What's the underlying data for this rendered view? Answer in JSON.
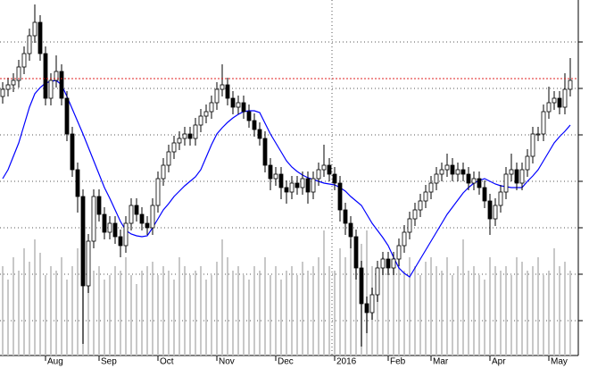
{
  "chart_data": {
    "type": "candlestick",
    "categories": [
      null,
      null,
      null,
      null,
      null,
      null,
      null,
      null,
      null,
      "Aug",
      null,
      null,
      null,
      null,
      null,
      null,
      null,
      null,
      null,
      "Sep",
      null,
      null,
      null,
      null,
      null,
      null,
      null,
      null,
      null,
      null,
      "Oct",
      null,
      null,
      null,
      null,
      null,
      null,
      null,
      null,
      null,
      null,
      "Nov",
      null,
      null,
      null,
      null,
      null,
      null,
      null,
      null,
      null,
      null,
      "Dec",
      null,
      null,
      null,
      null,
      null,
      null,
      null,
      null,
      null,
      null,
      "2016",
      null,
      null,
      null,
      null,
      null,
      null,
      null,
      null,
      null,
      "Feb",
      null,
      null,
      null,
      null,
      null,
      null,
      null,
      "Mar",
      null,
      null,
      null,
      null,
      null,
      null,
      null,
      null,
      null,
      null,
      "Apr",
      null,
      null,
      null,
      null,
      null,
      null,
      null,
      null,
      null,
      null,
      "May",
      null,
      null,
      null
    ],
    "open": [
      290,
      298,
      303,
      308,
      323,
      338,
      358,
      373,
      338,
      288,
      308,
      318,
      288,
      248,
      208,
      178,
      78,
      128,
      178,
      158,
      138,
      148,
      133,
      123,
      148,
      168,
      158,
      148,
      143,
      168,
      198,
      213,
      228,
      238,
      243,
      248,
      243,
      258,
      268,
      273,
      283,
      298,
      303,
      288,
      278,
      283,
      273,
      263,
      253,
      243,
      213,
      198,
      203,
      188,
      183,
      193,
      188,
      198,
      183,
      198,
      208,
      213,
      203,
      193,
      163,
      148,
      133,
      98,
      58,
      48,
      68,
      98,
      108,
      98,
      108,
      123,
      138,
      153,
      163,
      173,
      183,
      193,
      203,
      208,
      213,
      203,
      208,
      203,
      193,
      198,
      188,
      173,
      153,
      168,
      183,
      203,
      208,
      193,
      208,
      223,
      248,
      248,
      273,
      283,
      288,
      278,
      298
    ],
    "high": [
      306,
      311,
      316,
      331,
      346,
      366,
      393,
      381,
      346,
      316,
      336,
      326,
      296,
      256,
      216,
      186,
      136,
      186,
      186,
      166,
      156,
      156,
      141,
      156,
      176,
      176,
      166,
      156,
      176,
      206,
      221,
      236,
      246,
      251,
      256,
      256,
      266,
      276,
      281,
      291,
      306,
      326,
      311,
      296,
      291,
      291,
      281,
      271,
      261,
      251,
      221,
      211,
      211,
      196,
      201,
      201,
      206,
      206,
      206,
      216,
      236,
      221,
      211,
      201,
      171,
      156,
      141,
      106,
      66,
      76,
      106,
      116,
      116,
      116,
      131,
      146,
      161,
      171,
      181,
      191,
      201,
      211,
      216,
      226,
      221,
      216,
      216,
      211,
      206,
      206,
      196,
      181,
      176,
      191,
      211,
      226,
      216,
      216,
      231,
      256,
      256,
      281,
      301,
      296,
      296,
      316,
      333
    ],
    "low": [
      282,
      290,
      295,
      300,
      315,
      330,
      350,
      330,
      280,
      280,
      300,
      280,
      240,
      200,
      160,
      13,
      70,
      120,
      150,
      130,
      130,
      125,
      110,
      115,
      140,
      150,
      140,
      135,
      135,
      160,
      190,
      205,
      220,
      230,
      235,
      235,
      235,
      250,
      260,
      265,
      275,
      290,
      280,
      270,
      270,
      265,
      255,
      245,
      235,
      205,
      185,
      190,
      175,
      170,
      175,
      180,
      180,
      170,
      175,
      190,
      200,
      195,
      185,
      150,
      135,
      120,
      85,
      10,
      25,
      40,
      60,
      90,
      90,
      90,
      100,
      115,
      130,
      145,
      155,
      165,
      175,
      185,
      195,
      200,
      195,
      195,
      195,
      185,
      185,
      180,
      165,
      135,
      145,
      160,
      175,
      195,
      185,
      185,
      200,
      215,
      240,
      240,
      265,
      275,
      270,
      270,
      290
    ],
    "close": [
      298,
      303,
      308,
      323,
      338,
      358,
      373,
      338,
      288,
      308,
      318,
      288,
      248,
      208,
      178,
      78,
      128,
      178,
      158,
      138,
      148,
      133,
      123,
      148,
      168,
      158,
      148,
      143,
      168,
      198,
      213,
      228,
      238,
      243,
      248,
      243,
      258,
      268,
      273,
      283,
      298,
      303,
      288,
      278,
      283,
      273,
      263,
      253,
      243,
      213,
      198,
      203,
      188,
      183,
      193,
      188,
      198,
      183,
      198,
      208,
      213,
      203,
      193,
      163,
      148,
      133,
      98,
      58,
      48,
      68,
      98,
      108,
      98,
      108,
      123,
      138,
      153,
      163,
      173,
      183,
      193,
      203,
      208,
      213,
      203,
      208,
      203,
      193,
      198,
      188,
      173,
      153,
      168,
      183,
      203,
      208,
      193,
      208,
      223,
      248,
      248,
      273,
      283,
      288,
      278,
      298,
      308
    ],
    "volume": [
      100,
      85,
      110,
      95,
      120,
      105,
      130,
      115,
      90,
      100,
      95,
      110,
      85,
      100,
      120,
      140,
      110,
      95,
      100,
      85,
      90,
      100,
      95,
      110,
      90,
      80,
      95,
      100,
      105,
      90,
      100,
      95,
      85,
      110,
      100,
      90,
      95,
      100,
      85,
      90,
      105,
      130,
      110,
      95,
      100,
      90,
      85,
      100,
      95,
      110,
      90,
      100,
      85,
      95,
      100,
      90,
      105,
      95,
      100,
      110,
      140,
      100,
      95,
      120,
      110,
      130,
      115,
      125,
      140,
      100,
      95,
      110,
      105,
      100,
      120,
      95,
      110,
      100,
      90,
      105,
      110,
      100,
      95,
      110,
      90,
      100,
      130,
      95,
      100,
      90,
      85,
      110,
      100,
      95,
      100,
      90,
      110,
      105,
      95,
      100,
      110,
      90,
      95,
      120,
      100,
      105,
      95
    ],
    "moving_average": {
      "color": "#0000ff",
      "values": [
        198,
        208,
        223,
        238,
        258,
        278,
        293,
        300,
        305,
        307,
        308,
        303,
        290,
        276,
        262,
        248,
        233,
        218,
        203,
        188,
        176,
        163,
        150,
        140,
        136,
        134,
        133,
        134,
        143,
        153,
        163,
        170,
        178,
        184,
        190,
        195,
        200,
        208,
        222,
        236,
        248,
        255,
        261,
        266,
        270,
        273,
        274,
        274,
        272,
        260,
        248,
        238,
        228,
        218,
        211,
        206,
        202,
        199,
        197,
        195,
        193,
        192,
        191,
        188,
        184,
        178,
        173,
        168,
        158,
        148,
        140,
        132,
        123,
        110,
        98,
        92,
        88,
        98,
        108,
        118,
        128,
        138,
        148,
        158,
        166,
        174,
        182,
        188,
        193,
        196,
        198,
        195,
        192,
        190,
        189,
        188,
        188,
        188,
        195,
        201,
        208,
        218,
        228,
        238,
        245,
        251,
        258
      ]
    },
    "candle_color": "#000000",
    "volume_color": "#c8c8c8",
    "reference_line": {
      "value": 310,
      "color": "#e02020"
    },
    "ylim": [
      0,
      398
    ],
    "yticks": [
      39,
      91,
      143,
      195,
      247,
      299,
      351
    ],
    "y2lim": [
      0,
      398
    ],
    "grid": true
  }
}
